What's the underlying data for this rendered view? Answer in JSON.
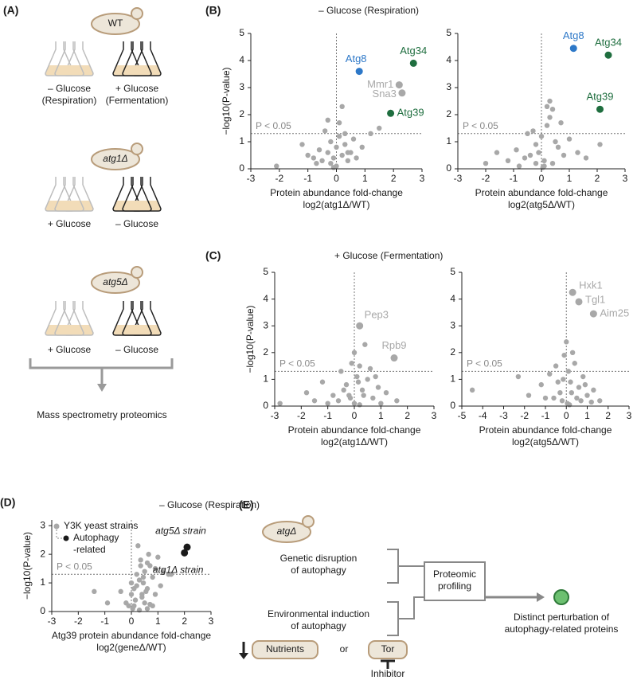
{
  "chart_data": [
    {
      "type": "scatter",
      "panel": "(B)",
      "title": "– Glucose (Respiration)",
      "ylabel": "−log10(P-value)",
      "xlabel": [
        "Protein abundance fold-change",
        "log2(atg1Δ/WT)"
      ],
      "xlim": [
        -3,
        3
      ],
      "ylim": [
        0,
        5
      ],
      "xticks": [
        -3,
        -2,
        -1,
        0,
        1,
        2,
        3
      ],
      "yticks": [
        0,
        1,
        2,
        3,
        4,
        5
      ],
      "threshold": 1.3,
      "threshold_label": "P < 0.05",
      "series": [
        {
          "color": "#a8a8a8",
          "x": [
            -0.5,
            -0.3,
            -0.2,
            -0.1,
            0,
            0.1,
            0.2,
            0.3,
            0.4,
            -0.6,
            -0.8,
            -0.4,
            0.5,
            0.6,
            -0.2,
            0.1,
            0.3,
            -1.0,
            -1.2,
            -2.1,
            0.9,
            1.2,
            1.5,
            -0.3,
            0.2,
            -0.7,
            0.7,
            0.0,
            -0.1,
            0.4
          ],
          "y": [
            0.3,
            0.6,
            1.0,
            0.4,
            0.8,
            1.2,
            0.5,
            0.9,
            0.3,
            0.7,
            0.4,
            1.4,
            0.6,
            1.1,
            0.2,
            1.7,
            1.3,
            0.5,
            0.9,
            0.1,
            0.8,
            1.3,
            1.5,
            1.8,
            2.3,
            0.2,
            0.4,
            0.1,
            0.05,
            0.6
          ]
        }
      ],
      "points": [
        {
          "label": "Atg8",
          "x": 0.8,
          "y": 3.6,
          "color": "#2d78c8"
        },
        {
          "label": "Atg34",
          "x": 2.7,
          "y": 3.9,
          "color": "#1f6e3f"
        },
        {
          "label": "Mmr1",
          "x": 2.2,
          "y": 3.1,
          "color": "#a8a8a8"
        },
        {
          "label": "Sna3",
          "x": 2.3,
          "y": 2.8,
          "color": "#a8a8a8"
        },
        {
          "label": "Atg39",
          "x": 1.9,
          "y": 2.05,
          "color": "#1f6e3f"
        }
      ]
    },
    {
      "type": "scatter",
      "xlabel": [
        "Protein abundance fold-change",
        "log2(atg5Δ/WT)"
      ],
      "xlim": [
        -3,
        3
      ],
      "ylim": [
        0,
        5
      ],
      "xticks": [
        -3,
        -2,
        -1,
        0,
        1,
        2,
        3
      ],
      "yticks": [
        0,
        1,
        2,
        3,
        4,
        5
      ],
      "threshold": 1.3,
      "threshold_label": "P < 0.05",
      "series": [
        {
          "color": "#a8a8a8",
          "x": [
            -0.4,
            -0.2,
            0,
            0.1,
            0.2,
            0.3,
            0.4,
            0.5,
            -0.6,
            -0.9,
            -1.2,
            -1.6,
            -2.0,
            -0.3,
            0.6,
            0.8,
            1.0,
            1.3,
            1.6,
            2.1,
            0.3,
            0.2,
            -0.1,
            0.1,
            0.4,
            -0.5,
            -0.8,
            0.7,
            0.05,
            -0.2
          ],
          "y": [
            0.5,
            0.9,
            1.2,
            0.3,
            1.6,
            2.5,
            2.2,
            1.0,
            0.4,
            0.7,
            0.3,
            0.6,
            0.2,
            1.4,
            0.8,
            0.5,
            1.1,
            0.6,
            0.4,
            0.9,
            1.9,
            2.3,
            0.6,
            0.1,
            0.2,
            1.3,
            0.1,
            1.7,
            0.05,
            0.2
          ]
        }
      ],
      "points": [
        {
          "label": "Atg8",
          "x": 1.15,
          "y": 4.45,
          "color": "#2d78c8"
        },
        {
          "label": "Atg34",
          "x": 2.4,
          "y": 4.2,
          "color": "#1f6e3f"
        },
        {
          "label": "Atg39",
          "x": 2.1,
          "y": 2.2,
          "color": "#1f6e3f"
        }
      ]
    },
    {
      "type": "scatter",
      "panel": "(C)",
      "title": "+ Glucose (Fermentation)",
      "ylabel": "−log10(P-value)",
      "xlabel": [
        "Protein abundance fold-change",
        "log2(atg1Δ/WT)"
      ],
      "xlim": [
        -3,
        3
      ],
      "ylim": [
        0,
        5
      ],
      "xticks": [
        -3,
        -2,
        -1,
        0,
        1,
        2,
        3
      ],
      "yticks": [
        0,
        1,
        2,
        3,
        4,
        5
      ],
      "threshold": 1.3,
      "threshold_label": "P < 0.05",
      "series": [
        {
          "color": "#a8a8a8",
          "x": [
            -2.8,
            -1.8,
            -1.2,
            -0.8,
            -0.5,
            -0.3,
            -0.1,
            0,
            0.1,
            0.2,
            0.3,
            0.5,
            0.7,
            0.9,
            1.2,
            1.6,
            -0.6,
            -0.2,
            0.4,
            0.6,
            -1.0,
            0.0,
            0.15,
            -0.4,
            0.8,
            -1.5,
            1.0,
            0.2,
            -0.15,
            0.35
          ],
          "y": [
            0.1,
            0.5,
            0.9,
            0.4,
            1.3,
            0.8,
            1.6,
            2.0,
            1.1,
            1.5,
            0.6,
            1.0,
            0.3,
            0.7,
            0.5,
            0.2,
            0.2,
            0.4,
            2.3,
            1.4,
            0.1,
            0.1,
            0.9,
            0.6,
            1.1,
            0.2,
            0.1,
            0.05,
            0.3,
            0.4
          ]
        }
      ],
      "points": [
        {
          "label": "Pep3",
          "x": 0.2,
          "y": 3.0,
          "color": "#a8a8a8"
        },
        {
          "label": "Rpb9",
          "x": 1.5,
          "y": 1.8,
          "color": "#a8a8a8"
        }
      ]
    },
    {
      "type": "scatter",
      "xlabel": [
        "Protein abundance fold-change",
        "log2(atg5Δ/WT)"
      ],
      "xlim": [
        -5,
        3
      ],
      "ylim": [
        0,
        5
      ],
      "xticks": [
        -5,
        -4,
        -3,
        -2,
        -1,
        0,
        1,
        2,
        3
      ],
      "yticks": [
        0,
        1,
        2,
        3,
        4,
        5
      ],
      "threshold": 1.3,
      "threshold_label": "P < 0.05",
      "series": [
        {
          "color": "#a8a8a8",
          "x": [
            -4.5,
            -2.3,
            -1.8,
            -1.2,
            -0.8,
            -0.5,
            -0.3,
            -0.1,
            0,
            0.1,
            0.2,
            0.4,
            0.6,
            0.8,
            1.0,
            1.3,
            1.6,
            -0.6,
            -0.2,
            0.3,
            -1.0,
            0.05,
            0.25,
            -0.4,
            0.9,
            1.2,
            0.5,
            0.15,
            -0.15,
            0.7
          ],
          "y": [
            0.6,
            1.1,
            0.4,
            0.8,
            1.2,
            1.5,
            0.5,
            1.9,
            2.4,
            1.3,
            0.9,
            1.6,
            0.7,
            1.1,
            0.4,
            0.6,
            0.2,
            0.3,
            0.2,
            2.0,
            0.3,
            0.1,
            0.5,
            0.9,
            0.8,
            0.15,
            0.3,
            0.05,
            1.0,
            0.2
          ]
        }
      ],
      "points": [
        {
          "label": "Hxk1",
          "x": 0.3,
          "y": 4.25,
          "color": "#a8a8a8"
        },
        {
          "label": "Tgl1",
          "x": 0.6,
          "y": 3.9,
          "color": "#a8a8a8"
        },
        {
          "label": "Aim25",
          "x": 1.3,
          "y": 3.45,
          "color": "#a8a8a8"
        }
      ]
    },
    {
      "type": "scatter",
      "panel": "(D)",
      "title": "– Glucose (Respiration)",
      "ylabel": "−log10(P-value)",
      "xlabel": [
        "Atg39 protein abundance fold-change",
        "log2(geneΔ/WT)"
      ],
      "xlim": [
        -3,
        3
      ],
      "ylim": [
        0,
        3.2
      ],
      "xticks": [
        -3,
        -2,
        -1,
        0,
        1,
        2,
        3
      ],
      "yticks": [
        0,
        1,
        2,
        3
      ],
      "threshold": 1.3,
      "threshold_label": "P < 0.05",
      "series": [
        {
          "name": "Y3K yeast strains",
          "color": "#a8a8a8",
          "x": [
            -0.2,
            0,
            0.1,
            0.2,
            0.3,
            0.4,
            0.5,
            0.6,
            0.7,
            0.8,
            0.9,
            1.0,
            1.2,
            1.4,
            0.25,
            0.35,
            0.45,
            0.55,
            0.65,
            0.15,
            0.05,
            -0.1,
            0.3,
            0.5,
            0.7,
            0.9,
            1.1,
            0.2,
            0.4,
            0.6,
            -0.4,
            -0.9,
            -1.4,
            0.0,
            0.8,
            1.5,
            0.35,
            0.45,
            0.1,
            0.6
          ],
          "y": [
            0.3,
            0.6,
            0.2,
            0.9,
            1.1,
            0.5,
            1.4,
            0.8,
            1.6,
            1.2,
            1.5,
            1.9,
            1.4,
            1.3,
            2.3,
            1.8,
            1.0,
            0.7,
            2.0,
            0.4,
            0.1,
            0.2,
            0.05,
            0.3,
            0.25,
            0.6,
            0.9,
            1.3,
            0.6,
            0.1,
            0.7,
            0.3,
            0.7,
            1.0,
            0.2,
            1.3,
            1.6,
            1.2,
            0.8,
            1.7
          ]
        },
        {
          "name": "Autophagy\n-related",
          "color": "#1a1a1a",
          "x": [
            2.1,
            2.0
          ],
          "y": [
            2.25,
            2.05
          ],
          "labels": [
            "atg5Δ strain",
            "atg1Δ strain"
          ]
        }
      ]
    }
  ],
  "panel_a": {
    "label": "(A)",
    "groups": [
      {
        "strain": "WT",
        "conditions": [
          "– Glucose\n(Respiration)",
          "+ Glucose\n(Fermentation)"
        ]
      },
      {
        "strain": "atg1Δ",
        "conditions": [
          "+ Glucose",
          "– Glucose"
        ]
      },
      {
        "strain": "atg5Δ",
        "conditions": [
          "+ Glucose",
          "– Glucose"
        ]
      }
    ],
    "output": "Mass spectrometry proteomics"
  },
  "panel_e": {
    "label": "(E)",
    "strain": "atgΔ",
    "inputs": [
      "Genetic disruption\nof autophagy",
      "Environmental induction\nof autophagy"
    ],
    "process": "Proteomic\nprofiling",
    "result": "Distinct perturbation of\nautophagy-related proteins",
    "nutrients": "Nutrients",
    "or": "or",
    "tor": "Tor",
    "inhibitor": "Inhibitor"
  }
}
